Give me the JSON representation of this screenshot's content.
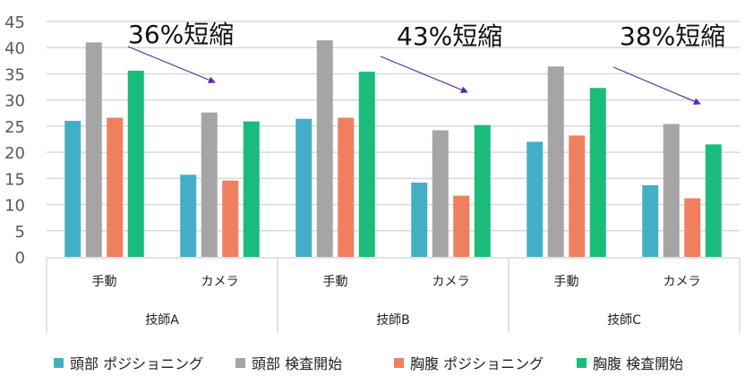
{
  "chart_data": {
    "type": "bar",
    "ylim": [
      0,
      45
    ],
    "yticks": [
      "0",
      "5",
      "10",
      "15",
      "20",
      "25",
      "30",
      "35",
      "40",
      "45"
    ],
    "grid": true,
    "legend_position": "bottom",
    "groups": [
      "技師A",
      "技師B",
      "技師C"
    ],
    "subcategories": [
      "手動",
      "カメラ"
    ],
    "series": [
      {
        "name": "頭部 ポジショニング",
        "color": "#43AFC6",
        "values": [
          26,
          15.7,
          26.4,
          14.2,
          22,
          13.7
        ]
      },
      {
        "name": "頭部 検査開始",
        "color": "#A5A5A5",
        "values": [
          41,
          27.6,
          41.4,
          24.2,
          36.4,
          25.4
        ]
      },
      {
        "name": "胸腹 ポジショニング",
        "color": "#F07F5E",
        "values": [
          26.6,
          14.6,
          26.6,
          11.7,
          23.2,
          11.2
        ]
      },
      {
        "name": "胸腹 検査開始",
        "color": "#1ABC7B",
        "values": [
          35.6,
          25.9,
          35.4,
          25.2,
          32.3,
          21.5
        ]
      }
    ],
    "annotations": [
      {
        "text": "36%短縮",
        "arrow_color": "#5B2AA5"
      },
      {
        "text": "43%短縮",
        "arrow_color": "#5B2AA5"
      },
      {
        "text": "38%短縮",
        "arrow_color": "#5B2AA5"
      }
    ]
  }
}
